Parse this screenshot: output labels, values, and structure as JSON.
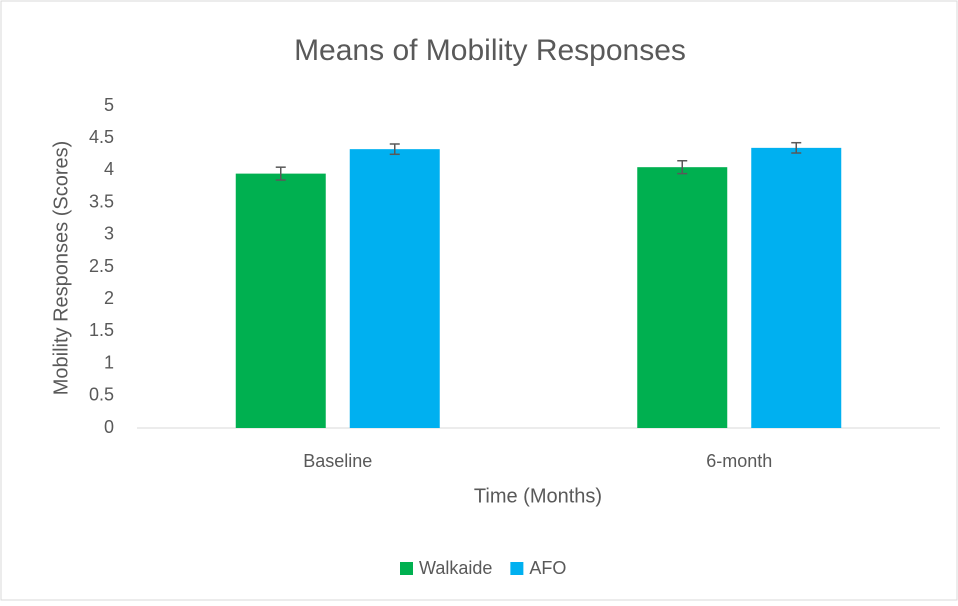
{
  "chart_data": {
    "type": "bar",
    "title": "Means of Mobility Responses",
    "x_label": "Time (Months)",
    "y_label": "Mobility Responses (Scores)",
    "categories": [
      "Baseline",
      "6-month"
    ],
    "series": [
      {
        "name": "Walkaide",
        "color": "#00b050",
        "values": [
          3.95,
          4.05
        ],
        "errors": [
          0.1,
          0.1
        ]
      },
      {
        "name": "AFO",
        "color": "#00b0f0",
        "values": [
          4.33,
          4.35
        ],
        "errors": [
          0.08,
          0.08
        ]
      }
    ],
    "ylim": [
      0,
      5
    ],
    "yticks": [
      0,
      0.5,
      1,
      1.5,
      2,
      2.5,
      3,
      3.5,
      4,
      4.5,
      5
    ],
    "grid": false,
    "legend": "bottom"
  }
}
